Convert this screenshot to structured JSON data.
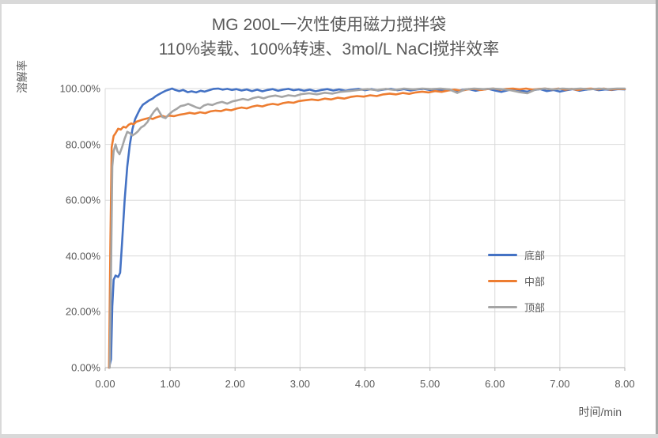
{
  "chart_data": {
    "type": "line",
    "title_line1": "MG 200L一次性使用磁力搅拌袋",
    "title_line2": "110%装载、100%转速、3mol/L NaCl搅拌效率",
    "ylabel": "溶解率",
    "xlabel": "时间/min",
    "xlim": [
      0,
      8
    ],
    "ylim": [
      0,
      100
    ],
    "x_ticks": [
      {
        "v": 0,
        "label": "0.00"
      },
      {
        "v": 1,
        "label": "1.00"
      },
      {
        "v": 2,
        "label": "2.00"
      },
      {
        "v": 3,
        "label": "3.00"
      },
      {
        "v": 4,
        "label": "4.00"
      },
      {
        "v": 5,
        "label": "5.00"
      },
      {
        "v": 6,
        "label": "6.00"
      },
      {
        "v": 7,
        "label": "7.00"
      },
      {
        "v": 8,
        "label": "8.00"
      }
    ],
    "y_ticks": [
      {
        "v": 0,
        "label": "0.00%"
      },
      {
        "v": 20,
        "label": "20.00%"
      },
      {
        "v": 40,
        "label": "40.00%"
      },
      {
        "v": 60,
        "label": "60.00%"
      },
      {
        "v": 80,
        "label": "80.00%"
      },
      {
        "v": 100,
        "label": "100.00%"
      }
    ],
    "grid": true,
    "legend_position": "inside-right",
    "colors": {
      "text": "#595959",
      "gridline": "#d9d9d9",
      "axis_line": "#bfbfbf"
    },
    "series": [
      {
        "name": "底部",
        "color": "#4472C4",
        "points": [
          [
            0.06,
            0
          ],
          [
            0.09,
            3
          ],
          [
            0.11,
            22
          ],
          [
            0.13,
            31.5
          ],
          [
            0.16,
            33
          ],
          [
            0.2,
            32.5
          ],
          [
            0.23,
            34
          ],
          [
            0.26,
            45
          ],
          [
            0.3,
            60
          ],
          [
            0.34,
            72
          ],
          [
            0.38,
            80
          ],
          [
            0.42,
            85.5
          ],
          [
            0.46,
            89
          ],
          [
            0.5,
            91
          ],
          [
            0.54,
            92.8
          ],
          [
            0.58,
            94.2
          ],
          [
            0.63,
            95
          ],
          [
            0.68,
            95.8
          ],
          [
            0.73,
            96.4
          ],
          [
            0.78,
            97.3
          ],
          [
            0.83,
            98
          ],
          [
            0.88,
            98.6
          ],
          [
            0.93,
            99.2
          ],
          [
            0.98,
            99.6
          ],
          [
            1.03,
            100
          ],
          [
            1.08,
            99.5
          ],
          [
            1.14,
            99.1
          ],
          [
            1.2,
            99.5
          ],
          [
            1.27,
            98.7
          ],
          [
            1.33,
            99.0
          ],
          [
            1.4,
            98.6
          ],
          [
            1.47,
            99.2
          ],
          [
            1.53,
            98.9
          ],
          [
            1.6,
            99.4
          ],
          [
            1.67,
            99.9
          ],
          [
            1.74,
            100
          ],
          [
            1.81,
            99.6
          ],
          [
            1.88,
            99.9
          ],
          [
            1.95,
            99.5
          ],
          [
            2.02,
            99.8
          ],
          [
            2.1,
            99.3
          ],
          [
            2.18,
            99.7
          ],
          [
            2.26,
            99.1
          ],
          [
            2.34,
            99.6
          ],
          [
            2.42,
            99.0
          ],
          [
            2.5,
            99.5
          ],
          [
            2.58,
            99.8
          ],
          [
            2.66,
            99.2
          ],
          [
            2.74,
            99.6
          ],
          [
            2.82,
            99.9
          ],
          [
            2.9,
            99.4
          ],
          [
            2.98,
            99.7
          ],
          [
            3.06,
            99.2
          ],
          [
            3.15,
            99.6
          ],
          [
            3.24,
            99.0
          ],
          [
            3.33,
            99.5
          ],
          [
            3.42,
            99.8
          ],
          [
            3.51,
            99.3
          ],
          [
            3.6,
            99.7
          ],
          [
            3.7,
            99.2
          ],
          [
            3.8,
            99.6
          ],
          [
            3.9,
            99.9
          ],
          [
            4.0,
            99.4
          ],
          [
            4.1,
            99.8
          ],
          [
            4.2,
            99.3
          ],
          [
            4.3,
            99.7
          ],
          [
            4.4,
            99.9
          ],
          [
            4.5,
            99.4
          ],
          [
            4.6,
            99.8
          ],
          [
            4.7,
            99.3
          ],
          [
            4.8,
            99.7
          ],
          [
            4.9,
            99.9
          ],
          [
            5.0,
            99.5
          ],
          [
            5.1,
            99.8
          ],
          [
            5.2,
            99.2
          ],
          [
            5.3,
            99.6
          ],
          [
            5.4,
            98.9
          ],
          [
            5.5,
            99.5
          ],
          [
            5.6,
            99.8
          ],
          [
            5.7,
            99.2
          ],
          [
            5.8,
            99.6
          ],
          [
            5.9,
            99.9
          ],
          [
            6.0,
            99.3
          ],
          [
            6.1,
            98.8
          ],
          [
            6.2,
            99.4
          ],
          [
            6.3,
            99.8
          ],
          [
            6.4,
            99.2
          ],
          [
            6.5,
            98.9
          ],
          [
            6.6,
            99.5
          ],
          [
            6.7,
            99.8
          ],
          [
            6.8,
            99.1
          ],
          [
            6.9,
            99.5
          ],
          [
            7.0,
            98.9
          ],
          [
            7.1,
            99.4
          ],
          [
            7.2,
            99.8
          ],
          [
            7.3,
            99.2
          ],
          [
            7.4,
            99.6
          ],
          [
            7.5,
            99.9
          ],
          [
            7.6,
            99.4
          ],
          [
            7.7,
            99.7
          ],
          [
            7.8,
            99.5
          ],
          [
            7.9,
            99.8
          ],
          [
            8.0,
            99.7
          ]
        ]
      },
      {
        "name": "中部",
        "color": "#ED7D31",
        "points": [
          [
            0.06,
            0
          ],
          [
            0.08,
            45
          ],
          [
            0.1,
            79
          ],
          [
            0.13,
            83
          ],
          [
            0.16,
            84
          ],
          [
            0.2,
            85.6
          ],
          [
            0.24,
            85.3
          ],
          [
            0.28,
            86.3
          ],
          [
            0.32,
            86.0
          ],
          [
            0.36,
            87.0
          ],
          [
            0.4,
            87.5
          ],
          [
            0.44,
            87.2
          ],
          [
            0.48,
            88.1
          ],
          [
            0.53,
            88.5
          ],
          [
            0.58,
            88.9
          ],
          [
            0.63,
            89.2
          ],
          [
            0.68,
            89.5
          ],
          [
            0.73,
            89.1
          ],
          [
            0.78,
            89.6
          ],
          [
            0.83,
            90.0
          ],
          [
            0.88,
            90.2
          ],
          [
            0.93,
            89.8
          ],
          [
            0.98,
            90.3
          ],
          [
            1.06,
            90.1
          ],
          [
            1.14,
            90.6
          ],
          [
            1.22,
            90.9
          ],
          [
            1.3,
            91.3
          ],
          [
            1.38,
            91.0
          ],
          [
            1.46,
            91.5
          ],
          [
            1.54,
            91.2
          ],
          [
            1.62,
            91.8
          ],
          [
            1.7,
            92.1
          ],
          [
            1.78,
            91.9
          ],
          [
            1.86,
            92.5
          ],
          [
            1.94,
            92.2
          ],
          [
            2.02,
            92.8
          ],
          [
            2.1,
            93.2
          ],
          [
            2.18,
            92.9
          ],
          [
            2.26,
            93.5
          ],
          [
            2.34,
            93.9
          ],
          [
            2.42,
            93.6
          ],
          [
            2.5,
            94.2
          ],
          [
            2.58,
            94.5
          ],
          [
            2.66,
            94.2
          ],
          [
            2.74,
            94.8
          ],
          [
            2.82,
            95.1
          ],
          [
            2.9,
            94.9
          ],
          [
            2.98,
            95.5
          ],
          [
            3.08,
            95.8
          ],
          [
            3.18,
            96.1
          ],
          [
            3.28,
            95.8
          ],
          [
            3.38,
            96.4
          ],
          [
            3.48,
            96.1
          ],
          [
            3.58,
            96.7
          ],
          [
            3.68,
            96.4
          ],
          [
            3.78,
            97.0
          ],
          [
            3.88,
            97.3
          ],
          [
            3.98,
            97.1
          ],
          [
            4.08,
            97.6
          ],
          [
            4.18,
            97.3
          ],
          [
            4.28,
            97.9
          ],
          [
            4.38,
            98.2
          ],
          [
            4.48,
            97.9
          ],
          [
            4.58,
            98.4
          ],
          [
            4.68,
            98.1
          ],
          [
            4.78,
            98.6
          ],
          [
            4.88,
            98.9
          ],
          [
            4.98,
            98.6
          ],
          [
            5.08,
            99.1
          ],
          [
            5.18,
            98.8
          ],
          [
            5.28,
            99.3
          ],
          [
            5.38,
            99.6
          ],
          [
            5.48,
            99.2
          ],
          [
            5.58,
            99.7
          ],
          [
            5.68,
            99.9
          ],
          [
            5.78,
            99.5
          ],
          [
            5.88,
            99.8
          ],
          [
            5.98,
            100
          ],
          [
            6.08,
            99.6
          ],
          [
            6.18,
            99.9
          ],
          [
            6.28,
            100
          ],
          [
            6.38,
            99.7
          ],
          [
            6.48,
            100
          ],
          [
            6.58,
            99.6
          ],
          [
            6.68,
            99.9
          ],
          [
            6.78,
            100
          ],
          [
            6.88,
            99.7
          ],
          [
            6.98,
            100
          ],
          [
            7.08,
            99.6
          ],
          [
            7.18,
            99.9
          ],
          [
            7.28,
            99.5
          ],
          [
            7.38,
            99.9
          ],
          [
            7.48,
            100
          ],
          [
            7.58,
            99.7
          ],
          [
            7.68,
            100
          ],
          [
            7.78,
            99.6
          ],
          [
            7.88,
            99.9
          ],
          [
            8.0,
            99.8
          ]
        ]
      },
      {
        "name": "顶部",
        "color": "#A5A5A5",
        "points": [
          [
            0.07,
            0
          ],
          [
            0.09,
            35
          ],
          [
            0.11,
            72
          ],
          [
            0.13,
            77.5
          ],
          [
            0.16,
            80
          ],
          [
            0.19,
            77.5
          ],
          [
            0.22,
            76.5
          ],
          [
            0.26,
            79
          ],
          [
            0.3,
            82
          ],
          [
            0.34,
            84.5
          ],
          [
            0.38,
            84
          ],
          [
            0.42,
            83.2
          ],
          [
            0.46,
            83.8
          ],
          [
            0.5,
            84.6
          ],
          [
            0.55,
            86
          ],
          [
            0.6,
            86.7
          ],
          [
            0.65,
            88
          ],
          [
            0.7,
            90
          ],
          [
            0.75,
            91.7
          ],
          [
            0.8,
            93
          ],
          [
            0.84,
            91.4
          ],
          [
            0.88,
            89.8
          ],
          [
            0.93,
            89.4
          ],
          [
            0.98,
            90.7
          ],
          [
            1.04,
            91.9
          ],
          [
            1.1,
            92.7
          ],
          [
            1.16,
            93.7
          ],
          [
            1.22,
            94.0
          ],
          [
            1.28,
            94.5
          ],
          [
            1.34,
            93.9
          ],
          [
            1.4,
            93.3
          ],
          [
            1.46,
            92.9
          ],
          [
            1.52,
            93.9
          ],
          [
            1.58,
            94.4
          ],
          [
            1.65,
            94.1
          ],
          [
            1.72,
            94.8
          ],
          [
            1.8,
            95.2
          ],
          [
            1.88,
            94.6
          ],
          [
            1.96,
            95.4
          ],
          [
            2.04,
            95.8
          ],
          [
            2.12,
            96.3
          ],
          [
            2.2,
            95.9
          ],
          [
            2.28,
            96.6
          ],
          [
            2.36,
            97.0
          ],
          [
            2.44,
            96.5
          ],
          [
            2.52,
            97.1
          ],
          [
            2.62,
            97.5
          ],
          [
            2.72,
            97.0
          ],
          [
            2.82,
            97.6
          ],
          [
            2.92,
            97.3
          ],
          [
            3.02,
            98.0
          ],
          [
            3.14,
            98.3
          ],
          [
            3.26,
            97.9
          ],
          [
            3.38,
            98.5
          ],
          [
            3.5,
            98.2
          ],
          [
            3.62,
            98.8
          ],
          [
            3.76,
            99.1
          ],
          [
            3.9,
            99.5
          ],
          [
            4.04,
            99.8
          ],
          [
            4.18,
            99.4
          ],
          [
            4.32,
            99.9
          ],
          [
            4.46,
            99.5
          ],
          [
            4.6,
            100
          ],
          [
            4.74,
            99.7
          ],
          [
            4.88,
            100
          ],
          [
            5.02,
            99.8
          ],
          [
            5.16,
            100
          ],
          [
            5.3,
            99.7
          ],
          [
            5.42,
            98.4
          ],
          [
            5.54,
            99.7
          ],
          [
            5.68,
            100
          ],
          [
            5.82,
            99.8
          ],
          [
            5.96,
            100
          ],
          [
            6.1,
            99.8
          ],
          [
            6.24,
            99.4
          ],
          [
            6.38,
            98.7
          ],
          [
            6.5,
            98.3
          ],
          [
            6.62,
            99.6
          ],
          [
            6.76,
            100
          ],
          [
            6.9,
            99.7
          ],
          [
            7.04,
            100
          ],
          [
            7.18,
            99.8
          ],
          [
            7.32,
            100
          ],
          [
            7.46,
            99.7
          ],
          [
            7.6,
            100
          ],
          [
            7.74,
            99.8
          ],
          [
            7.88,
            100
          ],
          [
            8.0,
            100
          ]
        ]
      }
    ]
  }
}
